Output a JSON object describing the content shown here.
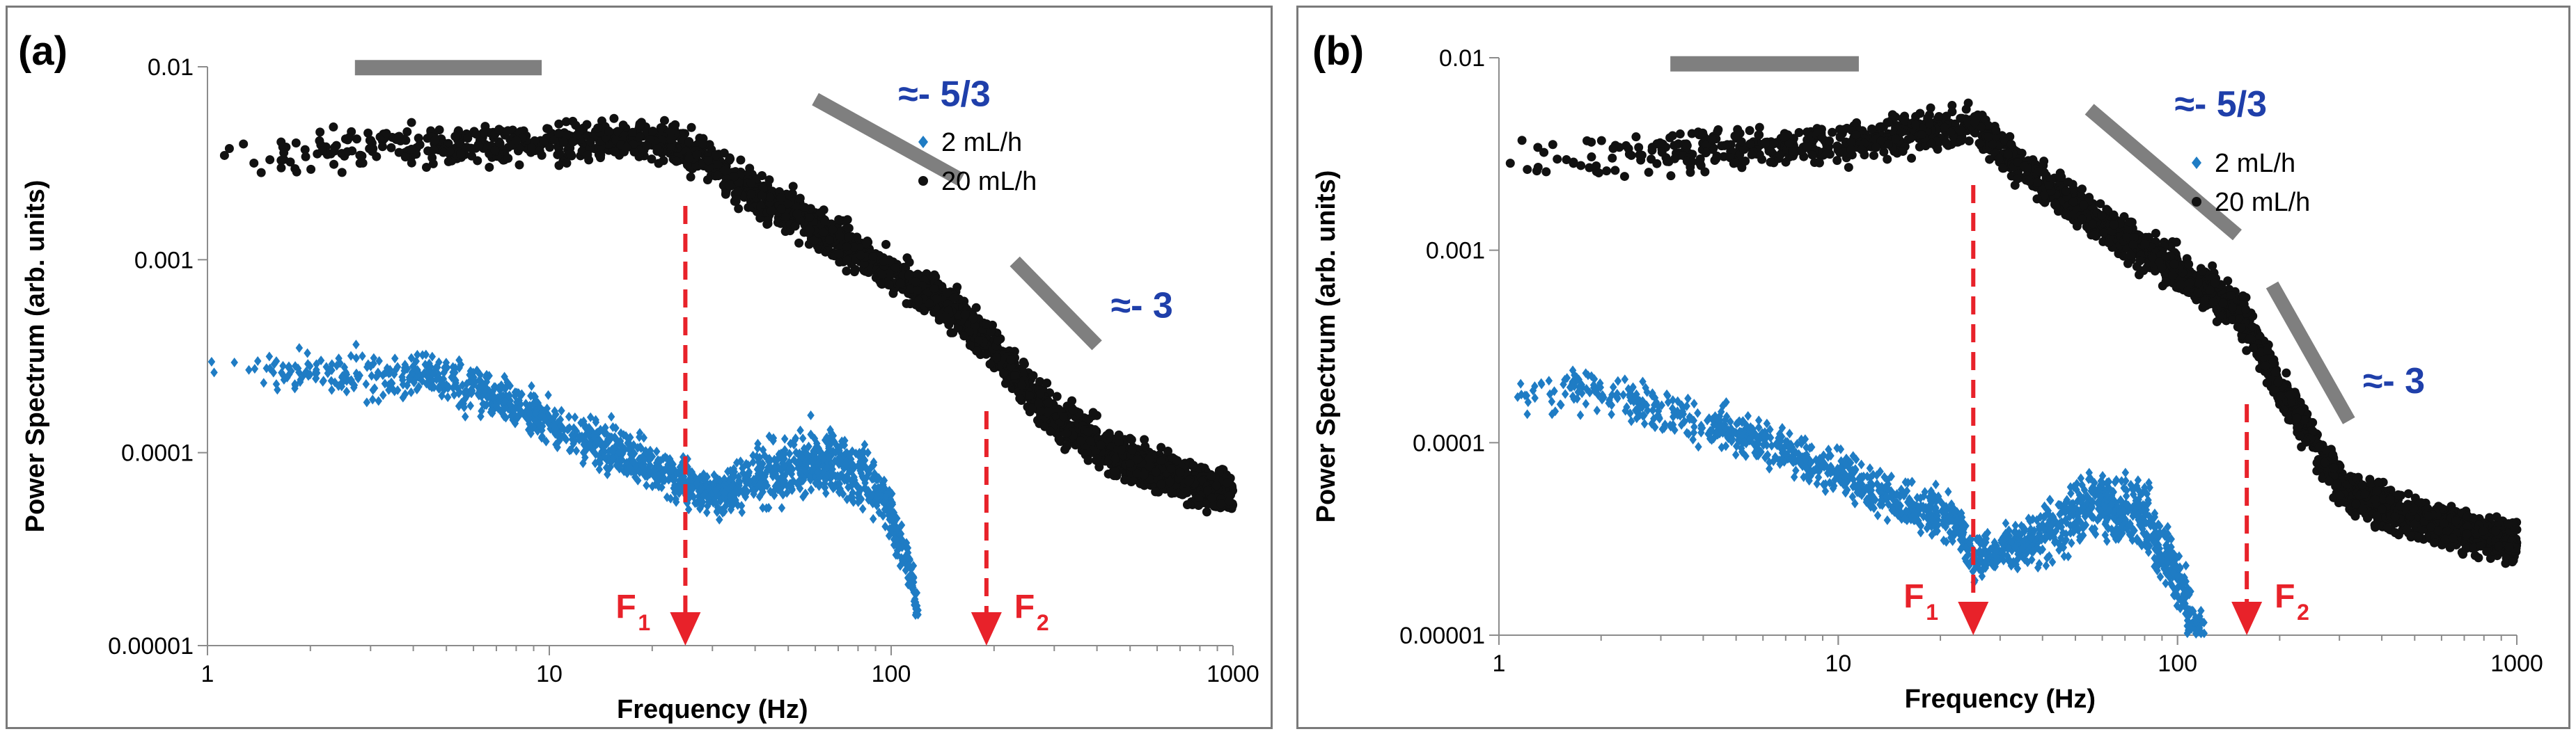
{
  "colors": {
    "series_low": "#1f7cc4",
    "series_high": "#111111",
    "annotation_red": "#e8222a",
    "slope_gray": "#7f7f7f",
    "slope_text": "#1f3faa",
    "axis": "#8c8c8c"
  },
  "chart_data": [
    {
      "type": "scatter",
      "panel_label": "(a)",
      "xlabel": "Frequency (Hz)",
      "ylabel": "Power Spectrum (arb. units)",
      "xscale": "log",
      "yscale": "log",
      "xlim": [
        1,
        1000
      ],
      "ylim": [
        1e-05,
        0.01
      ],
      "x_tick_labels": [
        "1",
        "10",
        "100",
        "1000"
      ],
      "y_tick_labels": [
        "0.01",
        "0.001",
        "0.0001",
        "0.00001"
      ],
      "legend": [
        {
          "label": "2 mL/h",
          "marker": "diamond",
          "color": "#1f7cc4"
        },
        {
          "label": "20 mL/h",
          "marker": "circle",
          "color": "#111111"
        }
      ],
      "series": [
        {
          "name": "20 mL/h",
          "color": "#111111",
          "x_range": [
            1,
            1000
          ],
          "profile_x": [
            1,
            3,
            10,
            15,
            25,
            40,
            80,
            150,
            200,
            300,
            500,
            1000
          ],
          "profile_y": [
            0.0035,
            0.0038,
            0.004,
            0.0042,
            0.0038,
            0.0022,
            0.0011,
            0.00055,
            0.00035,
            0.00015,
            9e-05,
            6e-05
          ]
        },
        {
          "name": "2 mL/h",
          "color": "#1f7cc4",
          "x_range": [
            1,
            120
          ],
          "profile_x": [
            1,
            2,
            4.5,
            8,
            12,
            18,
            25,
            30,
            45,
            65,
            90,
            110,
            120
          ],
          "profile_y": [
            0.0003,
            0.00025,
            0.00025,
            0.00018,
            0.00012,
            9.5e-05,
            7e-05,
            6e-05,
            8e-05,
            9e-05,
            7e-05,
            3e-05,
            1.5e-05
          ]
        }
      ],
      "annotations": {
        "flat_bar": {
          "x1": 2.7,
          "x2": 9.5,
          "y": 0.0099
        },
        "slope1": {
          "label": "≈- 5/3",
          "x1": 60,
          "x2": 160,
          "y1": 0.0068,
          "y2": 0.0026
        },
        "slope2": {
          "label": "≈- 3",
          "x1": 230,
          "x2": 400,
          "y1": 0.00098,
          "y2": 0.00036
        },
        "markers": [
          {
            "name": "F",
            "subscript": "1",
            "x": 25
          },
          {
            "name": "F",
            "subscript": "2",
            "x": 190
          }
        ]
      }
    },
    {
      "type": "scatter",
      "panel_label": "(b)",
      "xlabel": "Frequency (Hz)",
      "ylabel": "Power Spectrum (arb. units)",
      "xscale": "log",
      "yscale": "log",
      "xlim": [
        1,
        1000
      ],
      "ylim": [
        1e-05,
        0.01
      ],
      "x_tick_labels": [
        "1",
        "10",
        "100",
        "1000"
      ],
      "y_tick_labels": [
        "0.01",
        "0.001",
        "0.0001",
        "0.00001"
      ],
      "legend": [
        {
          "label": "2 mL/h",
          "marker": "diamond",
          "color": "#1f7cc4"
        },
        {
          "label": "20 mL/h",
          "marker": "circle",
          "color": "#111111"
        }
      ],
      "series": [
        {
          "name": "20 mL/h",
          "color": "#111111",
          "x_range": [
            1,
            1000
          ],
          "profile_x": [
            1,
            3,
            10,
            15,
            25,
            40,
            80,
            150,
            200,
            300,
            500,
            1000
          ],
          "profile_y": [
            0.003,
            0.0032,
            0.0035,
            0.004,
            0.0045,
            0.0022,
            0.001,
            0.0005,
            0.0002,
            6e-05,
            4e-05,
            3e-05
          ]
        },
        {
          "name": "2 mL/h",
          "color": "#1f7cc4",
          "x_range": [
            1,
            120
          ],
          "profile_x": [
            1,
            1.8,
            3,
            6,
            10,
            15,
            22,
            25,
            35,
            60,
            80,
            100,
            115
          ],
          "profile_y": [
            0.00015,
            0.0002,
            0.00015,
            0.0001,
            7e-05,
            5e-05,
            4e-05,
            2.5e-05,
            3e-05,
            5e-05,
            4e-05,
            2e-05,
            1e-05
          ]
        }
      ],
      "annotations": {
        "flat_bar": {
          "x1": 3.2,
          "x2": 11.5,
          "y": 0.0093
        },
        "slope1": {
          "label": "≈- 5/3",
          "x1": 55,
          "x2": 150,
          "y1": 0.0054,
          "y2": 0.0012
        },
        "slope2": {
          "label": "≈- 3",
          "x1": 190,
          "x2": 320,
          "y1": 0.00066,
          "y2": 0.00013
        },
        "markers": [
          {
            "name": "F",
            "subscript": "1",
            "x": 25
          },
          {
            "name": "F",
            "subscript": "2",
            "x": 160
          }
        ]
      }
    }
  ]
}
